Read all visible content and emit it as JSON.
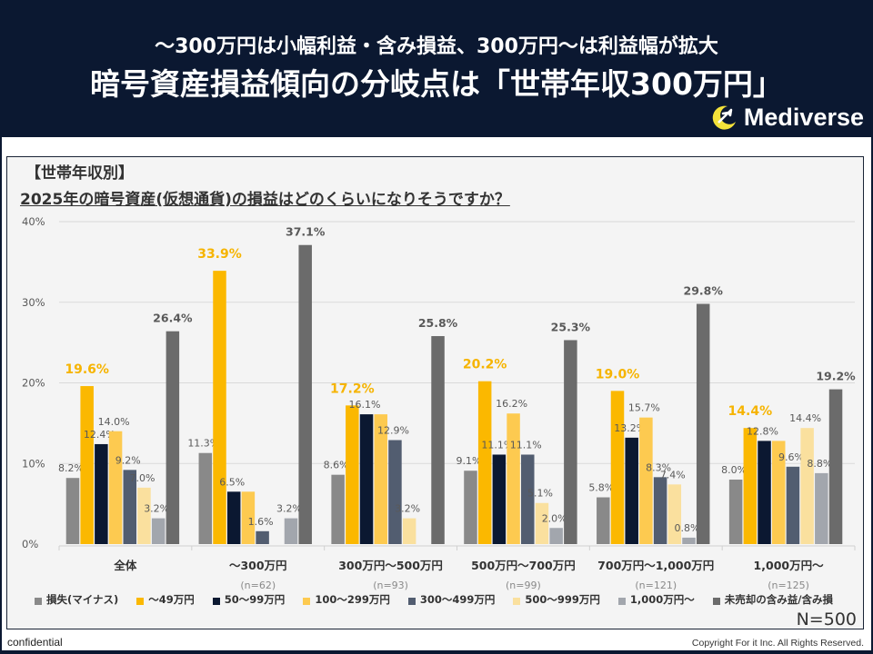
{
  "header": {
    "subtitle": "～300万円は小幅利益・含み損益、300万円～は利益幅が拡大",
    "title": "暗号資産損益傾向の分岐点は「世帯年収300万円」",
    "logo_text": "Mediverse",
    "logo_icon": "rocket-moon-icon"
  },
  "panel": {
    "section_label": "【世帯年収別】",
    "question": "2025年の暗号資産(仮想通貨)の損益はどのくらいになりそうですか？",
    "sample_size": "N=500"
  },
  "footer": {
    "left": "confidential",
    "right": "Copyright For it Inc. All Rights Reserved."
  },
  "colors": {
    "navy": "#0b1831",
    "highlight_label": "#f6b400",
    "label_gray": "#595959"
  },
  "chart_data": {
    "type": "bar",
    "title": "2025年の暗号資産(仮想通貨)の損益はどのくらいになりそうですか？",
    "xlabel": "",
    "ylabel": "",
    "ylim": [
      0,
      40
    ],
    "yticks": [
      0,
      10,
      20,
      30,
      40
    ],
    "ytick_labels": [
      "0%",
      "10%",
      "20%",
      "30%",
      "40%"
    ],
    "grid": true,
    "legend_position": "bottom",
    "categories": [
      "全体",
      "～300万円",
      "300万円～500万円",
      "500万円～700万円",
      "700万円～1,000万円",
      "1,000万円～"
    ],
    "category_n": [
      "",
      "(n=62)",
      "(n=93)",
      "(n=99)",
      "(n=121)",
      "(n=125)"
    ],
    "series": [
      {
        "name": "損失(マイナス)",
        "color": "#898989",
        "values": [
          8.2,
          11.3,
          8.6,
          9.1,
          5.8,
          8.0
        ]
      },
      {
        "name": "～49万円",
        "color": "#fbb800",
        "values": [
          19.6,
          33.9,
          17.2,
          20.2,
          19.0,
          14.4
        ],
        "highlight": true
      },
      {
        "name": "50～99万円",
        "color": "#0b1831",
        "values": [
          12.4,
          6.5,
          16.1,
          11.1,
          13.2,
          12.8
        ]
      },
      {
        "name": "100～299万円",
        "color": "#fdca50",
        "values": [
          14.0,
          6.5,
          16.1,
          16.2,
          15.7,
          12.8
        ]
      },
      {
        "name": "300～499万円",
        "color": "#525d70",
        "values": [
          9.2,
          1.6,
          12.9,
          11.1,
          8.3,
          9.6
        ]
      },
      {
        "name": "500～999万円",
        "color": "#fae09e",
        "values": [
          7.0,
          0,
          3.2,
          5.1,
          7.4,
          14.4
        ]
      },
      {
        "name": "1,000万円～",
        "color": "#a2a6ad",
        "values": [
          3.2,
          3.2,
          0,
          2.0,
          0.8,
          8.8
        ]
      },
      {
        "name": "未売却の含み益/含み損",
        "color": "#6b6b6b",
        "values": [
          26.4,
          37.1,
          25.8,
          25.3,
          29.8,
          19.2
        ],
        "bold_label": true
      }
    ],
    "data_labels": [
      [
        "8.2%",
        "19.6%",
        "12.4%",
        "14.0%",
        "9.2%",
        "7.0%",
        "3.2%",
        "26.4%"
      ],
      [
        "11.3%",
        "33.9%",
        "6.5%",
        "",
        "1.6%",
        "",
        "3.2%",
        "37.1%"
      ],
      [
        "8.6%",
        "17.2%",
        "16.1%",
        "",
        "12.9%",
        "3.2%",
        "",
        "25.8%"
      ],
      [
        "9.1%",
        "20.2%",
        "11.1%",
        "16.2%",
        "11.1%",
        "5.1%",
        "2.0%",
        "25.3%"
      ],
      [
        "5.8%",
        "19.0%",
        "13.2%",
        "15.7%",
        "8.3%",
        "7.4%",
        "0.8%",
        "29.8%"
      ],
      [
        "8.0%",
        "14.4%",
        "12.8%",
        "",
        "9.6%",
        "14.4%",
        "8.8%",
        "19.2%"
      ]
    ]
  }
}
